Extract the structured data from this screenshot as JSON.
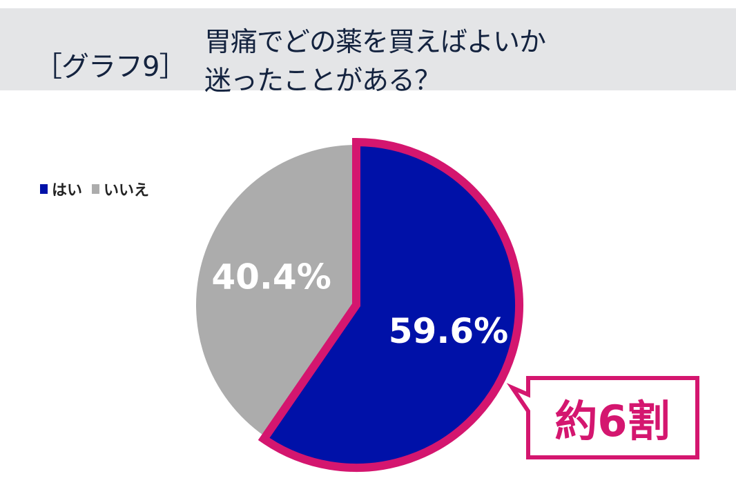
{
  "header": {
    "tag": "［グラフ9］",
    "title_line1": "胃痛でどの薬を買えばよいか",
    "title_line2": "迷ったことがある？"
  },
  "chart_data": {
    "type": "pie",
    "categories": [
      "はい",
      "いいえ"
    ],
    "values": [
      59.6,
      40.4
    ],
    "labels": [
      "59.6%",
      "40.4%"
    ],
    "colors": [
      "#0011a8",
      "#acacac"
    ],
    "highlight_color": "#d4166f",
    "legend_placement": "top-left",
    "annotation": "約6割"
  }
}
